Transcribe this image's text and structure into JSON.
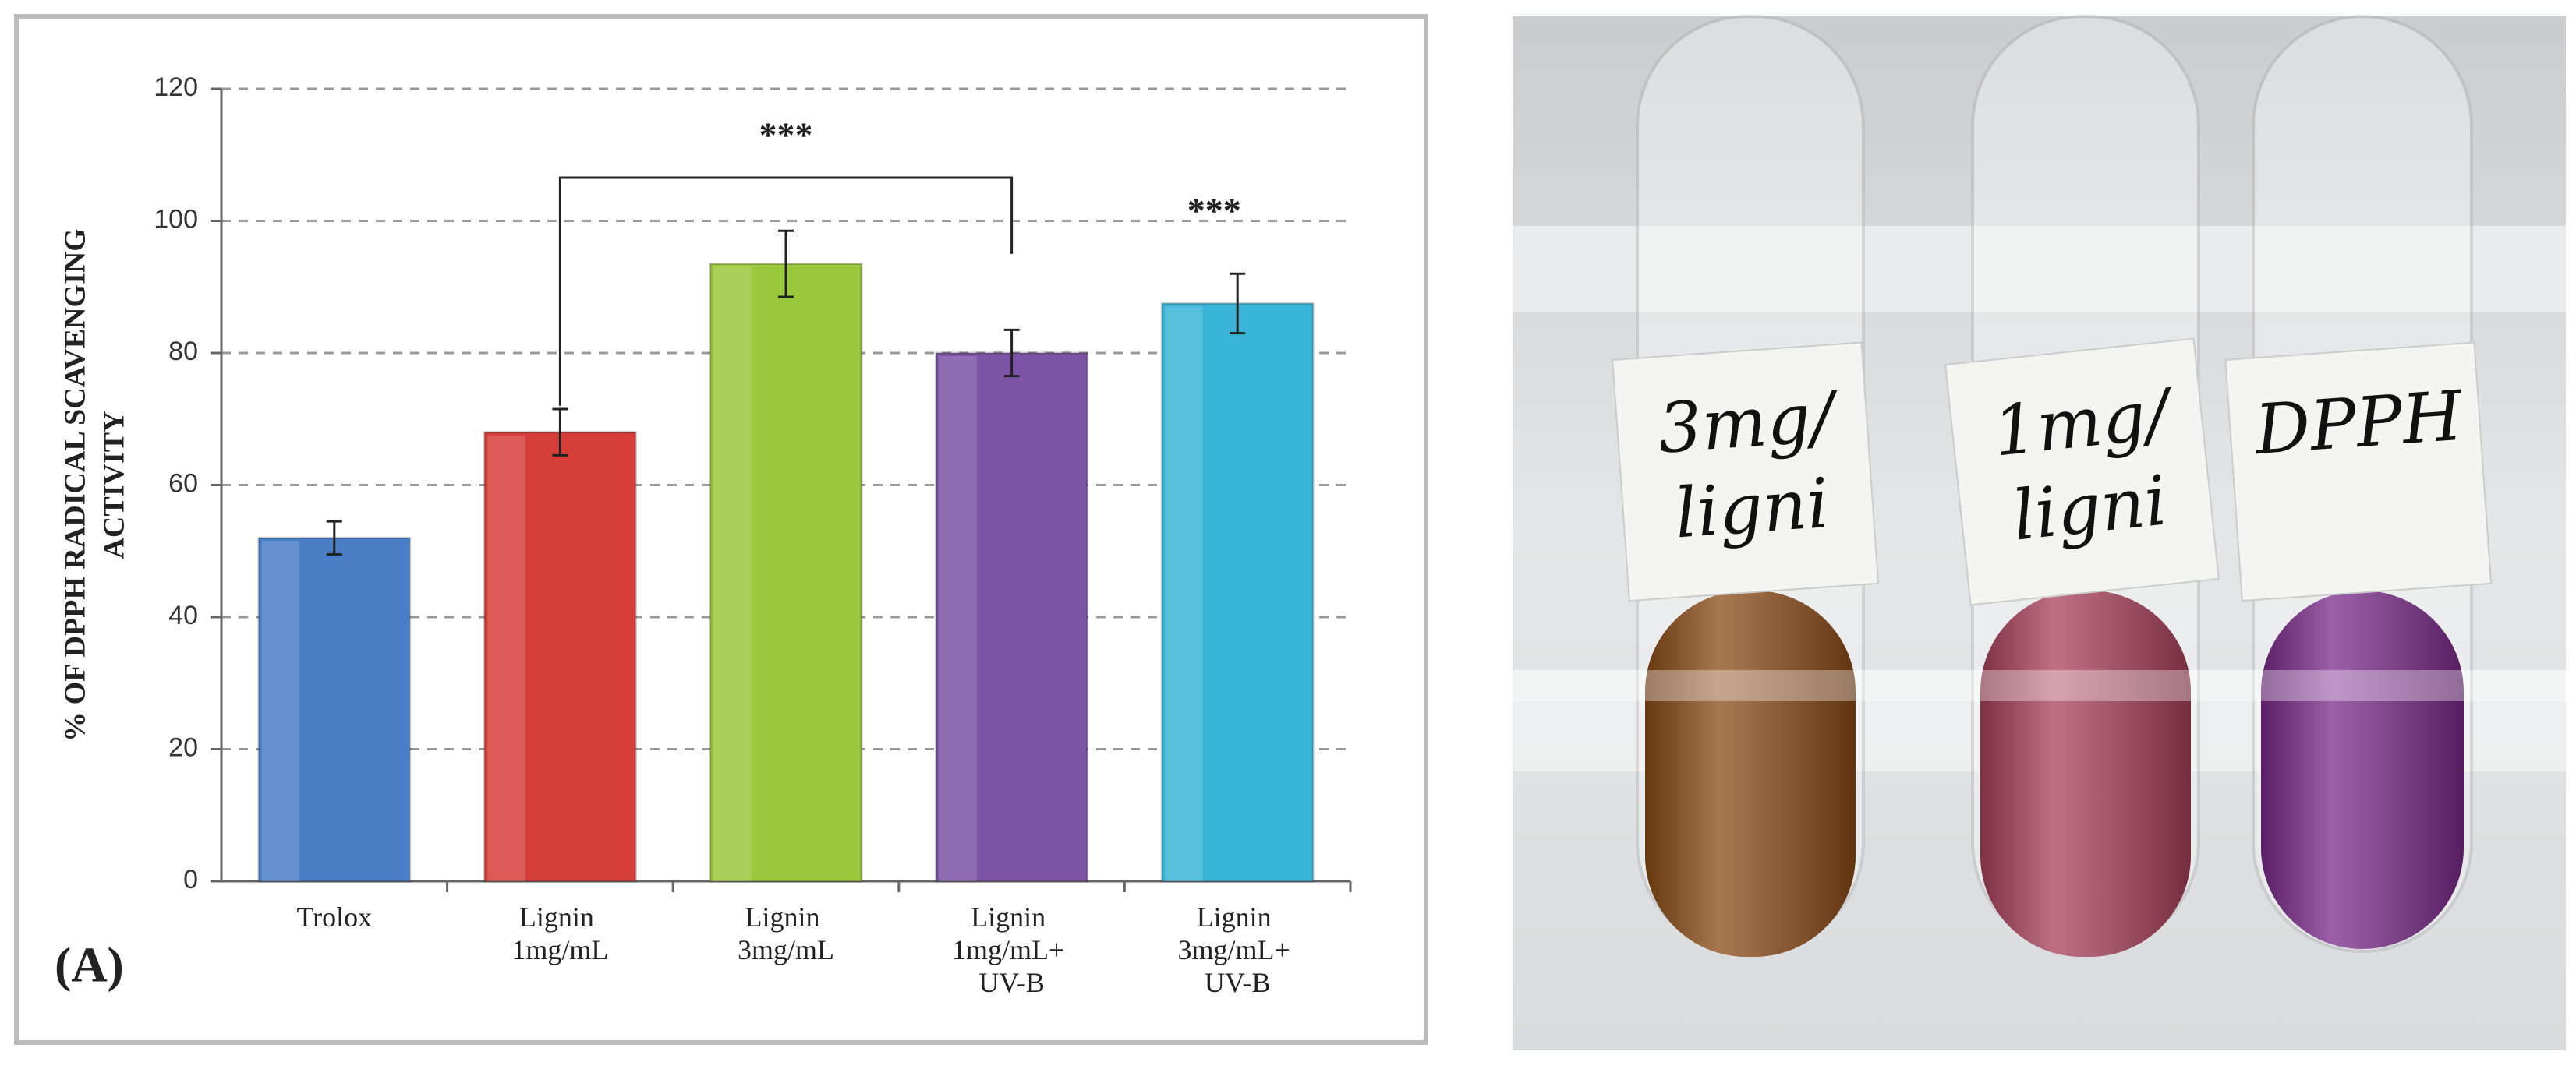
{
  "chart_data": {
    "type": "bar",
    "ylabel": [
      "% OF DPPH RADICAL SCAVENGING",
      "ACTIVITY"
    ],
    "categories": [
      "Trolox",
      "Lignin 1mg/mL",
      "Lignin 3mg/mL",
      "Lignin 1mg/mL+ UV-B",
      "Lignin 3mg/mL+ UV-B"
    ],
    "values": [
      52,
      68,
      93.5,
      80,
      87.5
    ],
    "errors": [
      2.5,
      3.5,
      5,
      3.5,
      4.5
    ],
    "colors": [
      "#4a7fc6",
      "#d63e3a",
      "#9ac93e",
      "#7d54a6",
      "#3ab4d6"
    ],
    "ylim": [
      0,
      120
    ],
    "yticks": [
      0,
      20,
      40,
      60,
      80,
      100,
      120
    ],
    "grid": true,
    "annotations": [
      "***",
      "***"
    ],
    "panel_label": "(A)"
  },
  "photo": {
    "tube_labels": [
      [
        "3mg/",
        "ligni"
      ],
      [
        "1mg/",
        "ligni"
      ],
      [
        "DPPH"
      ]
    ]
  }
}
